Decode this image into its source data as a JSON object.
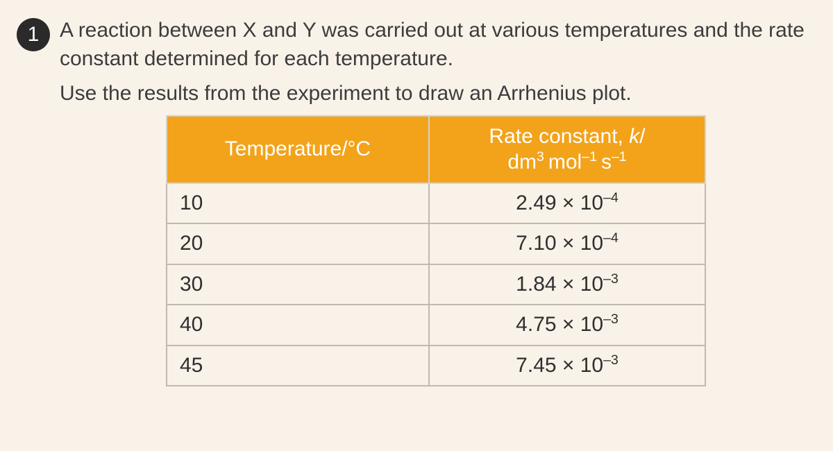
{
  "question": {
    "number": "1",
    "paragraph1": "A reaction between X and Y was carried out at various temperatures and the rate constant determined for each temperature.",
    "paragraph2": "Use the results from the experiment to draw an Arrhenius plot."
  },
  "table": {
    "header_temp": "Temperature/°C",
    "header_rate_html": "Rate constant, <span class=\"ital\">k</span>/<br>dm<sup>3</sup> mol<sup>–1</sup> s<sup>–1</sup>",
    "rows": [
      {
        "temp": "10",
        "rate_html": "2.49 × 10<sup>–4</sup>"
      },
      {
        "temp": "20",
        "rate_html": "7.10 × 10<sup>–4</sup>"
      },
      {
        "temp": "30",
        "rate_html": "1.84 × 10<sup>–3</sup>"
      },
      {
        "temp": "40",
        "rate_html": "4.75 × 10<sup>–3</sup>"
      },
      {
        "temp": "45",
        "rate_html": "7.45 × 10<sup>–3</sup>"
      }
    ],
    "colors": {
      "header_bg": "#f2a31a",
      "header_text": "#ffffff",
      "cell_border": "#bfb9af",
      "page_bg": "#f9f2e9"
    },
    "font_size_pt": 22
  }
}
